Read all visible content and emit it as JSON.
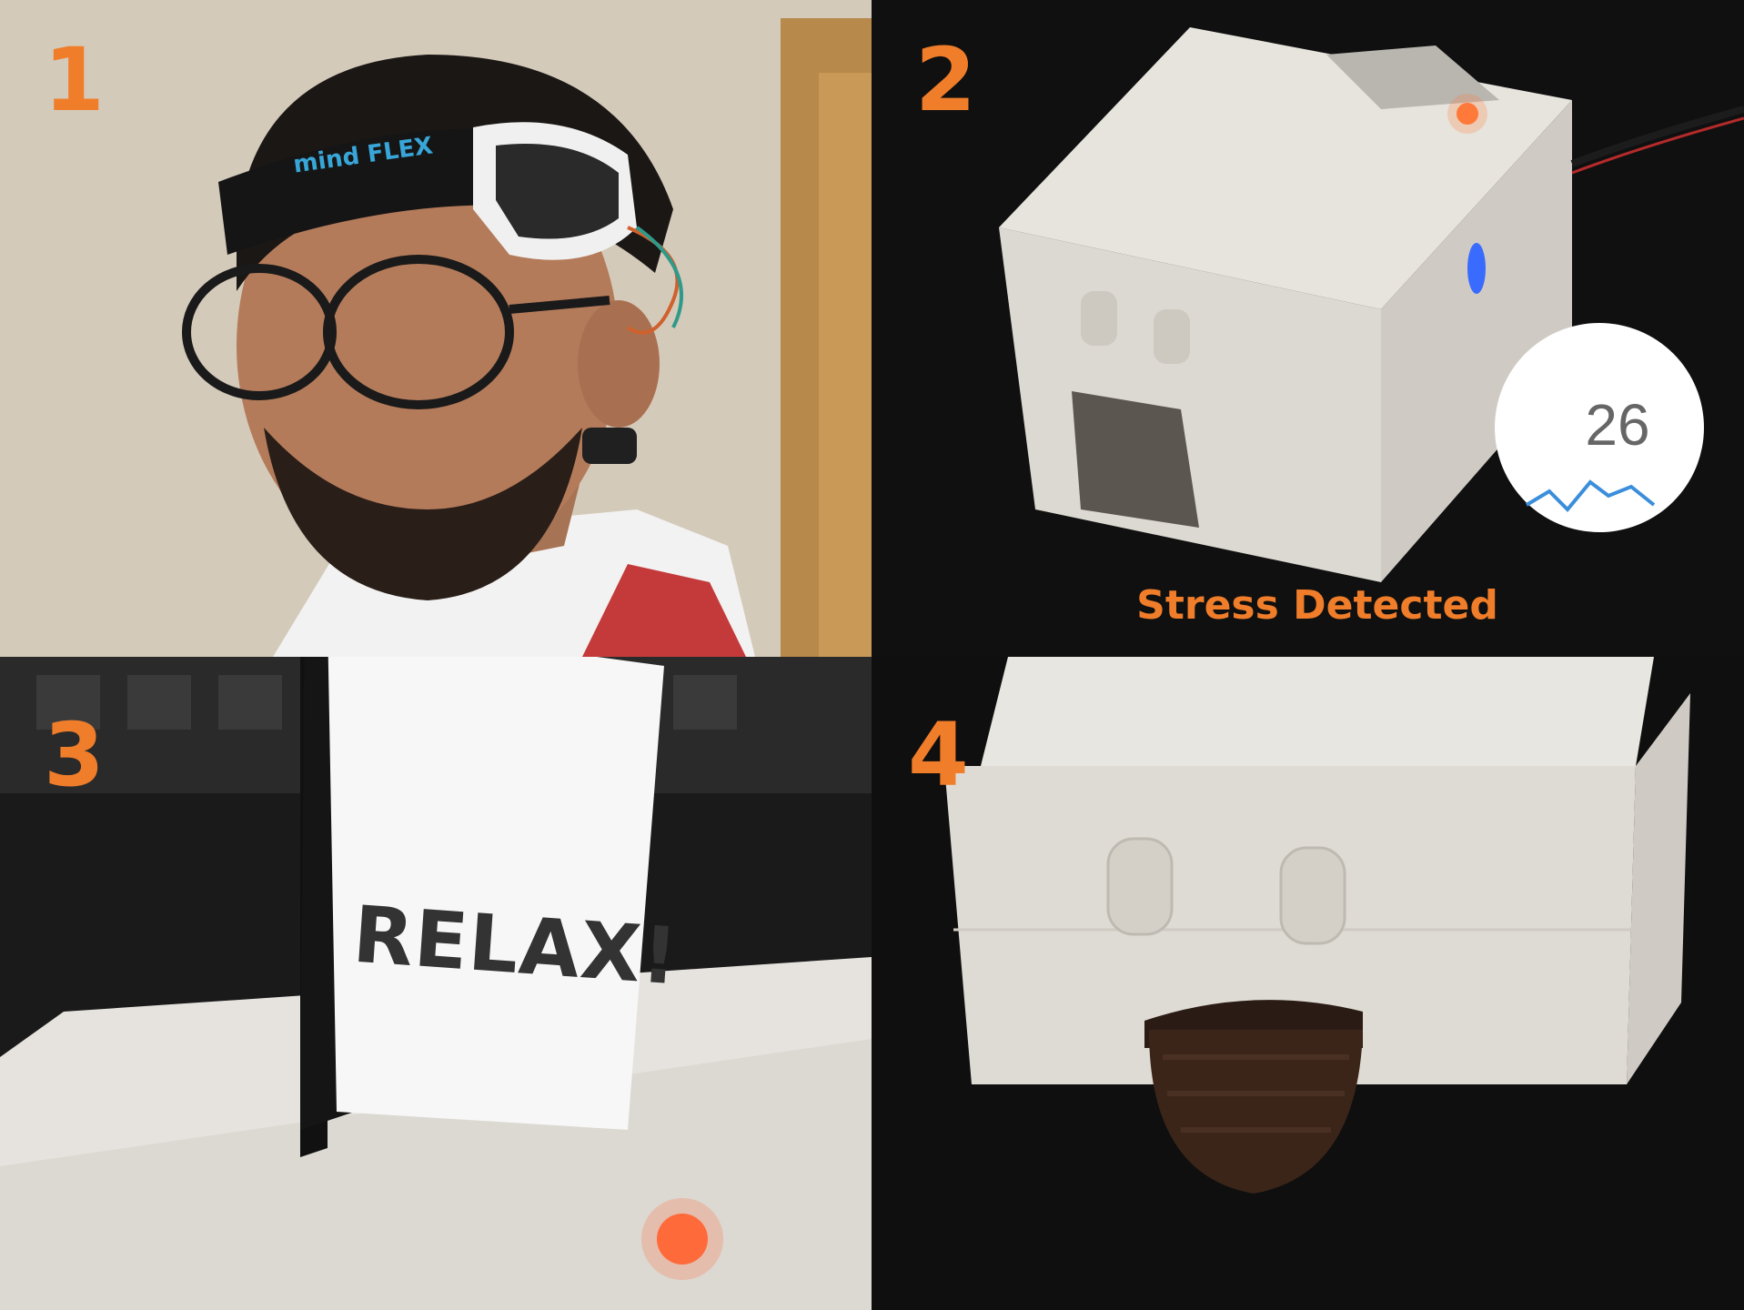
{
  "panels": [
    {
      "number": "1"
    },
    {
      "number": "2",
      "caption": "Stress Detected",
      "gauge_value": "26"
    },
    {
      "number": "3",
      "card_text": "RELAX!"
    },
    {
      "number": "4"
    }
  ],
  "headband_logo": "mind FLEX",
  "colors": {
    "accent": "#ef7d2a",
    "logo": "#38a6d8"
  }
}
